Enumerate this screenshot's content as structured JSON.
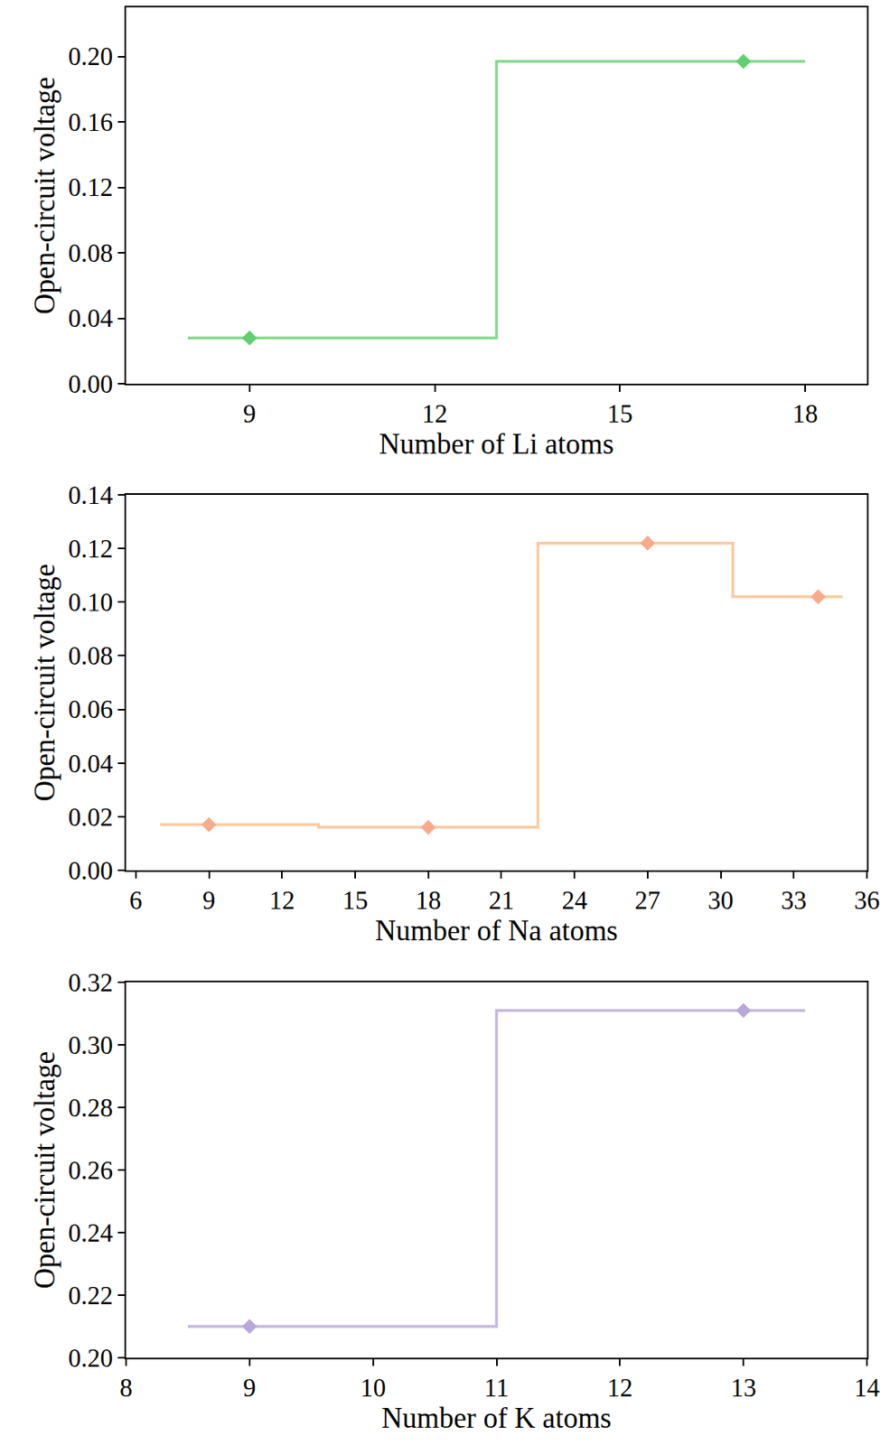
{
  "chart_data": [
    {
      "type": "line",
      "x_label": "Number of Li atoms",
      "y_label": "Open-circuit voltage",
      "xlim": [
        7,
        19
      ],
      "xticks": [
        9,
        12,
        15,
        18
      ],
      "ylim": [
        0,
        0.23
      ],
      "yticks": [
        {
          "value": 0,
          "label": "0.00"
        },
        {
          "value": 0.04,
          "label": "0.04"
        },
        {
          "value": 0.08,
          "label": "0.08"
        },
        {
          "value": 0.12,
          "label": "0.12"
        },
        {
          "value": 0.16,
          "label": "0.16"
        },
        {
          "value": 0.2,
          "label": "0.20"
        }
      ],
      "grid": false,
      "series": [
        {
          "type": "line",
          "line_style": "step",
          "color": "#86d98f",
          "x": [
            8,
            13,
            18
          ],
          "values": [
            0.028,
            0.197,
            0.197
          ]
        },
        {
          "type": "scatter",
          "marker": "diamond",
          "color": "#5fcf6f",
          "x": [
            9,
            17
          ],
          "values": [
            0.028,
            0.197
          ]
        }
      ]
    },
    {
      "type": "line",
      "x_label": "Number of Na atoms",
      "y_label": "Open-circuit voltage",
      "xlim": [
        5.6,
        36
      ],
      "xticks": [
        6,
        9,
        12,
        15,
        18,
        21,
        24,
        27,
        30,
        33,
        36
      ],
      "ylim": [
        0,
        0.14
      ],
      "yticks": [
        {
          "value": 0,
          "label": "0.00"
        },
        {
          "value": 0.02,
          "label": "0.02"
        },
        {
          "value": 0.04,
          "label": "0.04"
        },
        {
          "value": 0.06,
          "label": "0.06"
        },
        {
          "value": 0.08,
          "label": "0.08"
        },
        {
          "value": 0.1,
          "label": "0.10"
        },
        {
          "value": 0.12,
          "label": "0.12"
        },
        {
          "value": 0.14,
          "label": "0.14"
        }
      ],
      "grid": false,
      "series": [
        {
          "type": "line",
          "line_style": "step",
          "color": "#f9cba1",
          "x": [
            7,
            13.5,
            22.5,
            30.5,
            35
          ],
          "values": [
            0.017,
            0.016,
            0.122,
            0.102,
            0.102
          ]
        },
        {
          "type": "scatter",
          "marker": "diamond",
          "color": "#f8ab8c",
          "x": [
            9,
            18,
            27,
            34
          ],
          "values": [
            0.017,
            0.016,
            0.122,
            0.102
          ]
        }
      ]
    },
    {
      "type": "line",
      "x_label": "Number of K atoms",
      "y_label": "Open-circuit voltage",
      "xlim": [
        8,
        14
      ],
      "xticks": [
        8,
        9,
        10,
        11,
        12,
        13,
        14
      ],
      "ylim": [
        0.2,
        0.32
      ],
      "yticks": [
        {
          "value": 0.2,
          "label": "0.20"
        },
        {
          "value": 0.22,
          "label": "0.22"
        },
        {
          "value": 0.24,
          "label": "0.24"
        },
        {
          "value": 0.26,
          "label": "0.26"
        },
        {
          "value": 0.28,
          "label": "0.28"
        },
        {
          "value": 0.3,
          "label": "0.30"
        },
        {
          "value": 0.32,
          "label": "0.32"
        }
      ],
      "grid": false,
      "series": [
        {
          "type": "line",
          "line_style": "step",
          "color": "#c6b9de",
          "x": [
            8.5,
            11,
            13.5
          ],
          "values": [
            0.21,
            0.311,
            0.311
          ]
        },
        {
          "type": "scatter",
          "marker": "diamond",
          "color": "#b9a7d8",
          "x": [
            9,
            13
          ],
          "values": [
            0.21,
            0.311
          ]
        }
      ]
    }
  ]
}
